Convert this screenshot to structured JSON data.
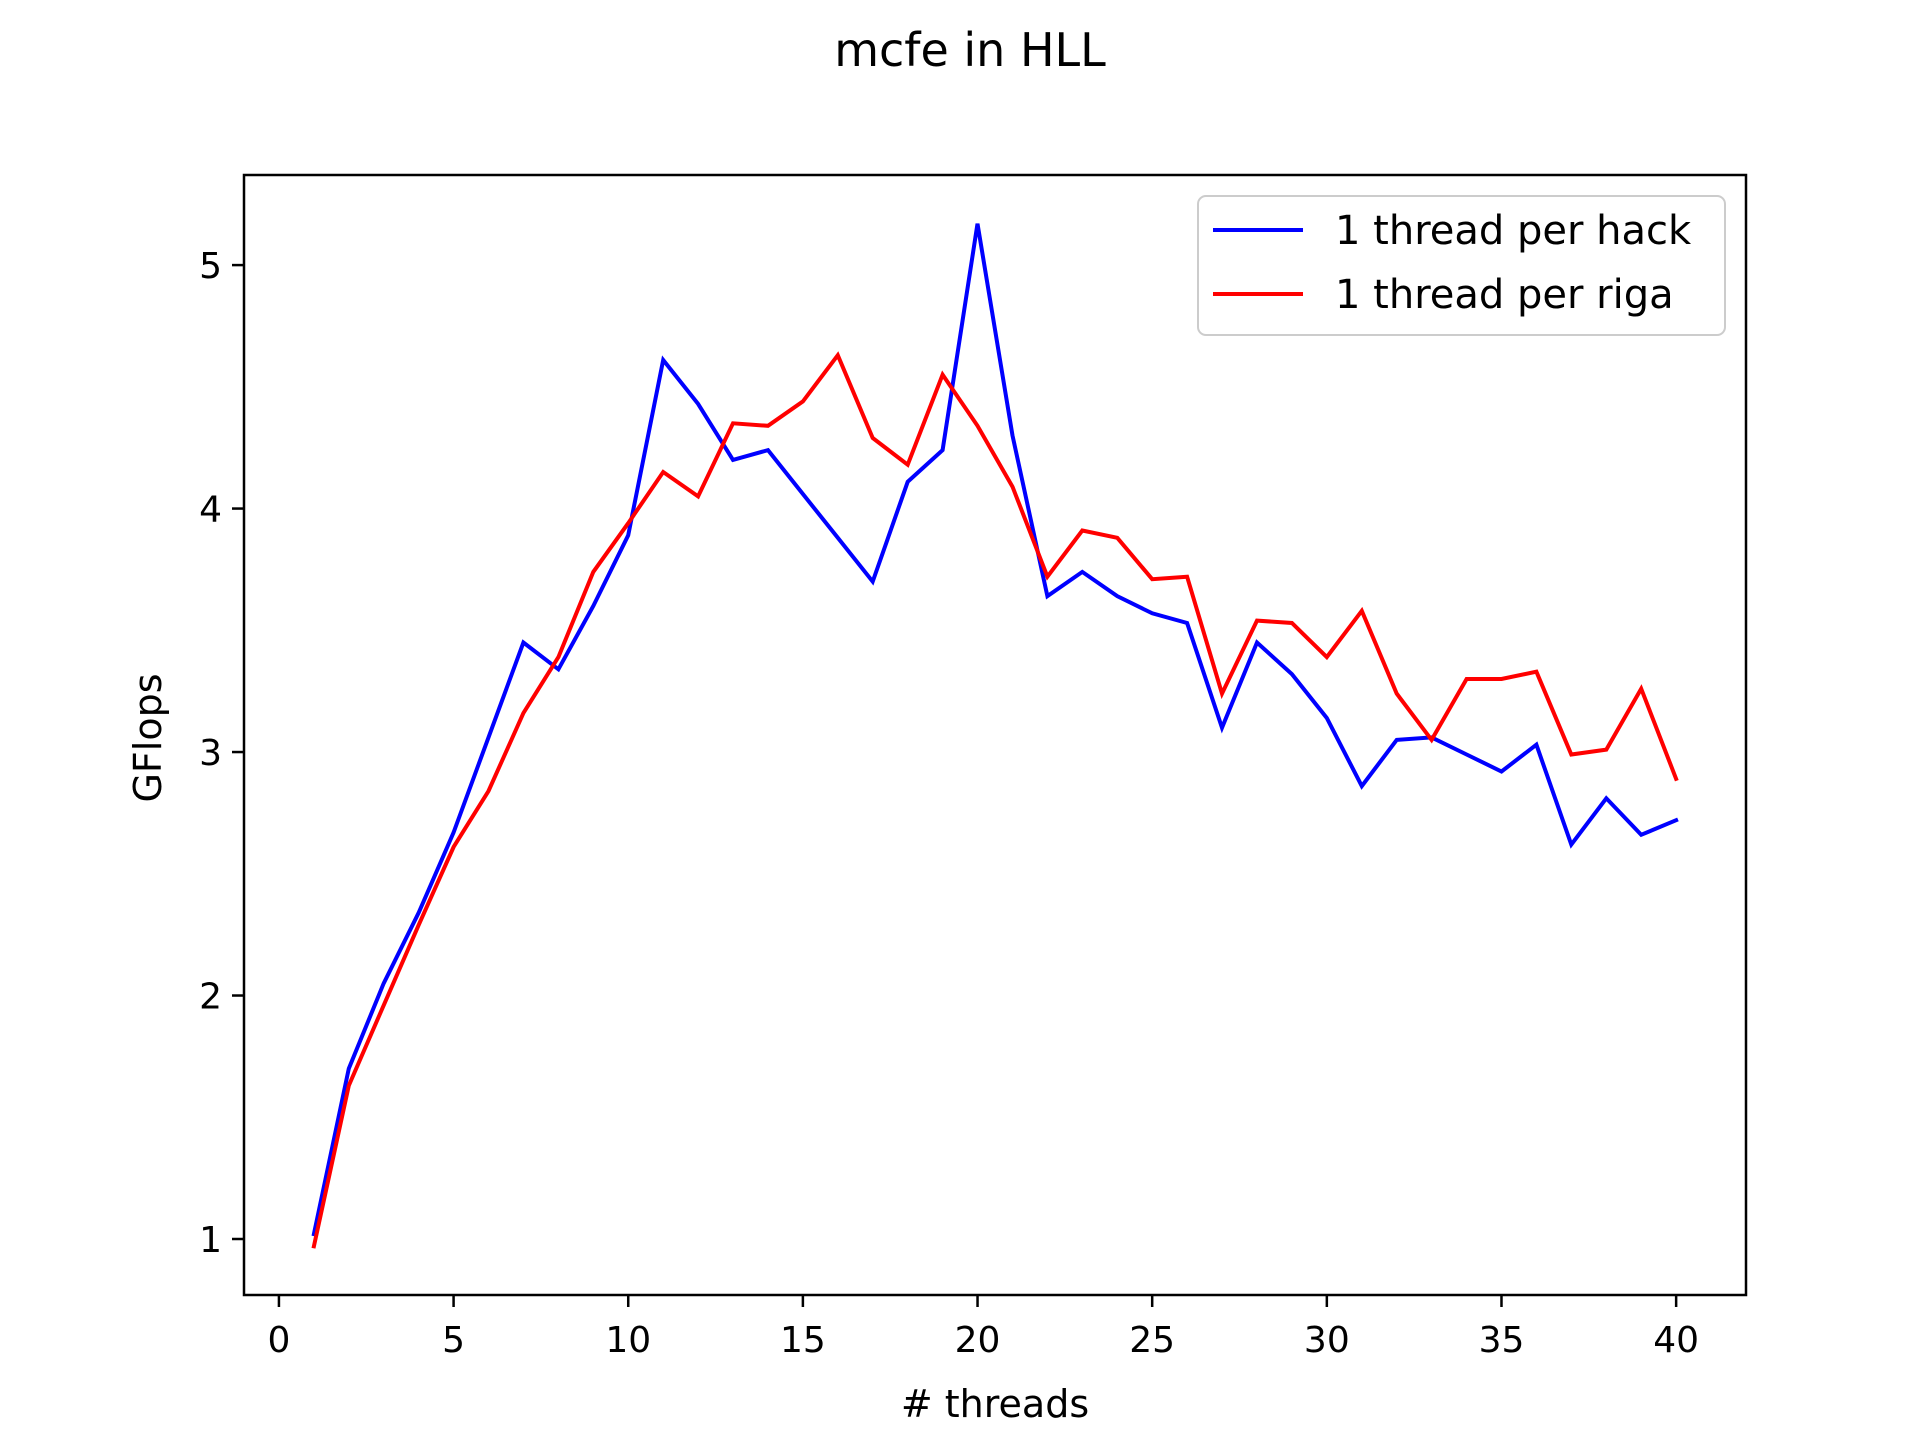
{
  "chart_data": {
    "type": "line",
    "title": "mcfe in HLL",
    "xlabel": "# threads",
    "ylabel": "GFlops",
    "xlim": [
      -1,
      42
    ],
    "ylim": [
      0.77,
      5.37
    ],
    "xticks": [
      0,
      5,
      10,
      15,
      20,
      25,
      30,
      35,
      40
    ],
    "yticks": [
      1,
      2,
      3,
      4,
      5
    ],
    "grid": false,
    "legend_position": "top-right",
    "x": [
      1,
      2,
      3,
      4,
      5,
      6,
      7,
      8,
      9,
      10,
      11,
      12,
      13,
      14,
      15,
      16,
      17,
      18,
      19,
      20,
      21,
      22,
      23,
      24,
      25,
      26,
      27,
      28,
      29,
      30,
      31,
      32,
      33,
      34,
      35,
      36,
      37,
      38,
      39,
      40
    ],
    "series": [
      {
        "name": "1 thread per hack",
        "color": "#0000ff",
        "values": [
          1.02,
          1.7,
          2.05,
          2.34,
          2.67,
          3.06,
          3.45,
          3.34,
          3.6,
          3.89,
          4.61,
          4.43,
          4.2,
          4.24,
          4.06,
          3.88,
          3.7,
          4.11,
          4.24,
          5.17,
          4.3,
          3.64,
          3.74,
          3.64,
          3.57,
          3.53,
          3.1,
          3.45,
          3.32,
          3.14,
          2.86,
          3.05,
          3.06,
          2.99,
          2.92,
          3.03,
          2.62,
          2.81,
          2.66,
          2.72
        ]
      },
      {
        "name": "1 thread per riga",
        "color": "#ff0000",
        "values": [
          0.97,
          1.63,
          1.96,
          2.29,
          2.61,
          2.84,
          3.16,
          3.39,
          3.74,
          3.94,
          4.15,
          4.05,
          4.35,
          4.34,
          4.44,
          4.63,
          4.29,
          4.18,
          4.55,
          4.34,
          4.09,
          3.72,
          3.91,
          3.88,
          3.71,
          3.72,
          3.24,
          3.54,
          3.53,
          3.39,
          3.58,
          3.24,
          3.05,
          3.3,
          3.3,
          3.33,
          2.99,
          3.01,
          3.26,
          2.89
        ]
      }
    ]
  }
}
